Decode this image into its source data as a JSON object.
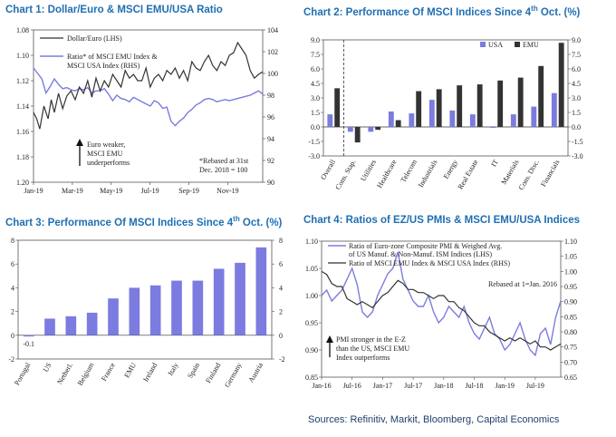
{
  "colors": {
    "title": "#1f6fb2",
    "dark": "#333333",
    "blue": "#7b7be0"
  },
  "chart_data": [
    {
      "id": "c1",
      "type": "line",
      "title_main": "Chart 1: Dollar/Euro & MSCI EMU/USA Ratio",
      "x_ticks": [
        "Jan-19",
        "Mar-19",
        "May-19",
        "Jul-19",
        "Sep-19",
        "Nov-19"
      ],
      "left_axis": {
        "ticks": [
          "1.08",
          "1.10",
          "1.12",
          "1.14",
          "1.16",
          "1.18",
          "1.20"
        ],
        "ylim": [
          1.08,
          1.2
        ],
        "inverted": true
      },
      "right_axis": {
        "ticks": [
          "104",
          "102",
          "100",
          "98",
          "96",
          "94",
          "92",
          "90"
        ],
        "ylim": [
          90,
          104
        ]
      },
      "legend": [
        "Dollar/Euro (LHS)",
        "Ratio* of MSCI EMU Index &",
        "MSCI USA Index (RHS)"
      ],
      "annotations": [
        "Euro weaker,",
        "MSCI EMU",
        "underperforms",
        "*Rebased at 31st",
        "Dec. 2018 = 100"
      ],
      "series": [
        {
          "name": "Dollar/Euro (LHS)",
          "color": "#333333",
          "x": [
            0,
            0.15,
            0.3,
            0.5,
            0.7,
            0.85,
            1,
            1.2,
            1.4,
            1.6,
            1.8,
            2,
            2.2,
            2.4,
            2.6,
            2.8,
            3,
            3.2,
            3.4,
            3.6,
            3.8,
            4,
            4.2,
            4.4,
            4.6,
            4.8,
            5,
            5.2,
            5.4,
            5.6,
            5.8,
            6,
            6.2,
            6.4,
            6.6,
            6.8,
            7,
            7.2,
            7.4,
            7.6,
            7.8,
            8,
            8.2,
            8.4,
            8.6,
            8.8,
            9,
            9.2,
            9.4,
            9.6,
            9.8,
            10,
            10.2,
            10.4,
            10.6,
            10.8,
            11.0
          ],
          "values": [
            1.145,
            1.15,
            1.158,
            1.14,
            1.15,
            1.135,
            1.145,
            1.13,
            1.142,
            1.132,
            1.128,
            1.135,
            1.125,
            1.13,
            1.12,
            1.133,
            1.118,
            1.128,
            1.12,
            1.125,
            1.115,
            1.12,
            1.125,
            1.112,
            1.118,
            1.115,
            1.12,
            1.12,
            1.11,
            1.125,
            1.118,
            1.115,
            1.12,
            1.112,
            1.115,
            1.11,
            1.118,
            1.112,
            1.12,
            1.105,
            1.11,
            1.112,
            1.105,
            1.1,
            1.108,
            1.112,
            1.105,
            1.108,
            1.1,
            1.098,
            1.09,
            1.095,
            1.1,
            1.112,
            1.118,
            1.115,
            1.113
          ]
        },
        {
          "name": "Ratio (RHS)",
          "color": "#7b7be0",
          "x": [
            0,
            0.2,
            0.4,
            0.6,
            0.8,
            1,
            1.2,
            1.4,
            1.6,
            1.8,
            2,
            2.2,
            2.4,
            2.6,
            2.8,
            3,
            3.2,
            3.4,
            3.6,
            3.8,
            4,
            4.2,
            4.4,
            4.6,
            4.8,
            5,
            5.2,
            5.4,
            5.6,
            5.8,
            6,
            6.2,
            6.4,
            6.6,
            6.8,
            7,
            7.2,
            7.4,
            7.6,
            7.8,
            8,
            8.2,
            8.4,
            8.6,
            8.8,
            9,
            9.2,
            9.4,
            9.6,
            9.8,
            10,
            10.2,
            10.4,
            10.6,
            10.8,
            11.0
          ],
          "values": [
            100.5,
            100,
            99.5,
            98.2,
            98.8,
            99.5,
            99,
            98.6,
            98.7,
            98.5,
            98.4,
            98.6,
            98.5,
            98.7,
            98.2,
            98.4,
            98.4,
            98.6,
            98.1,
            97.5,
            98,
            97.7,
            97.6,
            97.4,
            97.8,
            97.6,
            97.4,
            97.2,
            97,
            97.5,
            97.3,
            96.8,
            96.9,
            95.6,
            95.2,
            95.6,
            95.9,
            96.4,
            96.7,
            97.1,
            97.3,
            97.6,
            97.7,
            97.6,
            97.4,
            97.5,
            97.6,
            97.5,
            97.6,
            97.7,
            97.8,
            97.9,
            98,
            98.2,
            98.4,
            98.1
          ]
        }
      ],
      "xlim": [
        0,
        11
      ]
    },
    {
      "id": "c2",
      "type": "bar",
      "title_main": "Chart 2: Performance Of MSCI Indices Since 4",
      "title_sup": "th",
      "title_end": " Oct. (%)",
      "categories": [
        "Overall",
        "Cons. Stap.",
        "Utilities",
        "Healthcare",
        "Telecom",
        "Industrials",
        "Energy",
        "Real Estate",
        "IT",
        "Materials",
        "Cons. Disc.",
        "Financials"
      ],
      "legend": [
        "USA",
        "EMU"
      ],
      "series": [
        {
          "name": "USA",
          "color": "#7b7be0",
          "values": [
            1.3,
            -0.5,
            -0.5,
            1.6,
            1.4,
            2.8,
            1.7,
            1.3,
            -0.1,
            1.3,
            2.1,
            3.5
          ]
        },
        {
          "name": "EMU",
          "color": "#333333",
          "values": [
            4.0,
            -1.6,
            -0.3,
            0.7,
            3.7,
            3.9,
            4.3,
            4.4,
            4.8,
            5.1,
            6.3,
            8.7
          ]
        }
      ],
      "left_ticks": [
        "9.0",
        "7.5",
        "6.0",
        "4.5",
        "3.0",
        "1.5",
        "0.0",
        "-1.5",
        "-3.0"
      ],
      "right_ticks": [
        "9.0",
        "7.5",
        "6.0",
        "4.5",
        "3.0",
        "1.5",
        "0.0",
        "-1.5",
        "-3.0"
      ],
      "ylim": [
        -3,
        9
      ]
    },
    {
      "id": "c3",
      "type": "bar",
      "title_main": "Chart 3: Performance Of MSCI Indices Since 4",
      "title_sup": "th",
      "title_end": " Oct. (%)",
      "categories": [
        "Portugal",
        "US",
        "Netherl.",
        "Belgium",
        "France",
        "EMU",
        "Ireland",
        "Italy",
        "Spain",
        "Finland",
        "Germany",
        "Austria"
      ],
      "values": [
        -0.1,
        1.4,
        1.6,
        1.9,
        3.1,
        4.0,
        4.2,
        4.6,
        4.6,
        5.6,
        6.1,
        7.4
      ],
      "data_label": "-0.1",
      "color": "#7b7be0",
      "left_ticks": [
        "8",
        "6",
        "4",
        "2",
        "0",
        "-2"
      ],
      "right_ticks": [
        "8",
        "6",
        "4",
        "2",
        "0",
        "-2"
      ],
      "ylim": [
        -2,
        8
      ]
    },
    {
      "id": "c4",
      "type": "line",
      "title_main": "Chart 4: Ratios of EZ/US PMIs & MSCI EMU/USA Indices",
      "x_ticks": [
        "Jan-16",
        "Jul-16",
        "Jan-17",
        "Jul-17",
        "Jan-18",
        "Jul-18",
        "Jan-19",
        "Jul-19"
      ],
      "left_axis": {
        "ticks": [
          "1.10",
          "1.05",
          "1.00",
          "0.95",
          "0.90",
          "0.85"
        ],
        "ylim": [
          0.85,
          1.1
        ]
      },
      "right_axis": {
        "ticks": [
          "1.10",
          "1.05",
          "1.00",
          "0.95",
          "0.90",
          "0.85",
          "0.80",
          "0.75",
          "0.70",
          "0.65"
        ],
        "ylim": [
          0.65,
          1.1
        ]
      },
      "legend": [
        "Ratio of Euro-zone Composite PMI & Weighed Avg.",
        "of US Manuf. & Non-Manuf. ISM Indices (LHS)",
        "Ratio of MSCI EMU Index & MSCI USA Index (RHS)"
      ],
      "annotations": [
        "Rebased at 1=Jan. 2016",
        "PMI stronger in the E-Z",
        "than the US, MSCI EMU",
        "Index outperforms"
      ],
      "series": [
        {
          "name": "PMI ratio (LHS)",
          "color": "#7b7be0",
          "x": [
            0,
            1,
            2,
            3,
            4,
            5,
            6,
            7,
            8,
            9,
            10,
            11,
            12,
            13,
            14,
            15,
            16,
            17,
            18,
            19,
            20,
            21,
            22,
            23,
            24,
            25,
            26,
            27,
            28,
            29,
            30,
            31,
            32,
            33,
            34,
            35,
            36,
            37,
            38,
            39,
            40,
            41,
            42,
            43,
            44,
            45,
            46,
            47
          ],
          "values": [
            1.0,
            1.01,
            0.99,
            1.0,
            1.01,
            1.03,
            1.05,
            1.02,
            0.97,
            0.96,
            0.97,
            1.0,
            1.02,
            1.04,
            1.05,
            1.08,
            1.03,
            1.01,
            0.99,
            0.98,
            0.98,
            1.0,
            0.97,
            0.95,
            0.96,
            0.98,
            0.97,
            0.96,
            0.98,
            0.95,
            0.93,
            0.92,
            0.94,
            0.96,
            0.93,
            0.92,
            0.9,
            0.91,
            0.93,
            0.95,
            0.92,
            0.9,
            0.89,
            0.93,
            0.94,
            0.91,
            0.96,
            0.99
          ]
        },
        {
          "name": "MSCI ratio (RHS)",
          "color": "#333333",
          "x": [
            0,
            1,
            2,
            3,
            4,
            5,
            6,
            7,
            8,
            9,
            10,
            11,
            12,
            13,
            14,
            15,
            16,
            17,
            18,
            19,
            20,
            21,
            22,
            23,
            24,
            25,
            26,
            27,
            28,
            29,
            30,
            31,
            32,
            33,
            34,
            35,
            36,
            37,
            38,
            39,
            40,
            41,
            42,
            43,
            44,
            45,
            46,
            47
          ],
          "values": [
            1.0,
            0.99,
            0.96,
            0.95,
            0.95,
            0.91,
            0.9,
            0.89,
            0.9,
            0.89,
            0.88,
            0.9,
            0.92,
            0.93,
            0.95,
            0.97,
            0.96,
            0.94,
            0.94,
            0.93,
            0.93,
            0.92,
            0.91,
            0.92,
            0.92,
            0.9,
            0.9,
            0.88,
            0.87,
            0.85,
            0.83,
            0.82,
            0.82,
            0.8,
            0.79,
            0.78,
            0.77,
            0.78,
            0.77,
            0.78,
            0.77,
            0.76,
            0.77,
            0.75,
            0.75,
            0.74,
            0.75,
            0.76
          ]
        }
      ],
      "xlim": [
        0,
        47
      ]
    }
  ],
  "footer": {
    "sources": "Sources: Refinitiv, Markit, Bloomberg, Capital Economics"
  }
}
